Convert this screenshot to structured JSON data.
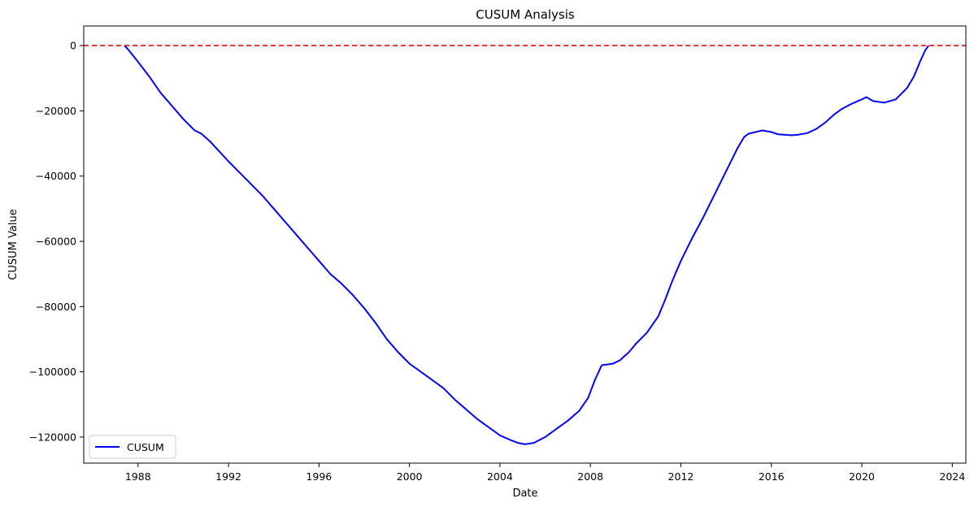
{
  "chart_data": {
    "type": "line",
    "title": "CUSUM Analysis",
    "xlabel": "Date",
    "ylabel": "CUSUM Value",
    "xlim": [
      1985.6,
      2024.6
    ],
    "ylim": [
      -128000,
      6000
    ],
    "x_ticks": [
      1988,
      1992,
      1996,
      2000,
      2004,
      2008,
      2012,
      2016,
      2020,
      2024
    ],
    "x_tick_labels": [
      "1988",
      "1992",
      "1996",
      "2000",
      "2004",
      "2008",
      "2012",
      "2016",
      "2020",
      "2024"
    ],
    "y_ticks": [
      0,
      -20000,
      -40000,
      -60000,
      -80000,
      -100000,
      -120000
    ],
    "y_tick_labels": [
      "0",
      "−20000",
      "−40000",
      "−60000",
      "−80000",
      "−100000",
      "−120000"
    ],
    "grid": false,
    "legend_position": "lower-left",
    "series": [
      {
        "name": "CUSUM",
        "color": "#0000ff",
        "x": [
          1987.4,
          1987.6,
          1988.0,
          1988.5,
          1989.0,
          1989.5,
          1990.0,
          1990.5,
          1990.8,
          1991.2,
          1991.6,
          1992.0,
          1992.5,
          1993.0,
          1993.5,
          1994.0,
          1994.5,
          1995.0,
          1995.5,
          1996.0,
          1996.5,
          1997.0,
          1997.5,
          1998.0,
          1998.5,
          1999.0,
          1999.5,
          2000.0,
          2000.5,
          2001.0,
          2001.5,
          2002.0,
          2002.5,
          2003.0,
          2003.5,
          2004.0,
          2004.5,
          2004.8,
          2005.1,
          2005.5,
          2006.0,
          2006.5,
          2007.0,
          2007.5,
          2007.9,
          2008.2,
          2008.5,
          2008.7,
          2009.0,
          2009.3,
          2009.7,
          2010.0,
          2010.5,
          2011.0,
          2011.3,
          2011.6,
          2012.0,
          2012.5,
          2013.0,
          2013.5,
          2014.0,
          2014.5,
          2014.8,
          2015.0,
          2015.3,
          2015.6,
          2016.0,
          2016.3,
          2016.9,
          2017.2,
          2017.6,
          2018.0,
          2018.4,
          2018.8,
          2019.1,
          2019.5,
          2020.0,
          2020.2,
          2020.5,
          2021.0,
          2021.5,
          2022.0,
          2022.3,
          2022.6,
          2022.8,
          2022.95
        ],
        "y": [
          0,
          -1500,
          -5000,
          -9500,
          -14500,
          -18500,
          -22500,
          -26000,
          -27000,
          -29500,
          -32500,
          -35500,
          -39000,
          -42500,
          -46000,
          -50000,
          -54000,
          -58000,
          -62000,
          -66000,
          -70000,
          -73000,
          -76500,
          -80500,
          -85000,
          -90000,
          -94000,
          -97500,
          -100000,
          -102500,
          -105000,
          -108500,
          -111500,
          -114500,
          -117000,
          -119500,
          -121000,
          -121800,
          -122200,
          -121800,
          -120000,
          -117500,
          -115000,
          -112000,
          -108000,
          -102500,
          -98000,
          -97800,
          -97500,
          -96500,
          -94000,
          -91500,
          -88000,
          -83000,
          -78000,
          -72500,
          -66000,
          -59000,
          -52500,
          -45500,
          -38500,
          -31500,
          -28000,
          -27000,
          -26500,
          -26000,
          -26500,
          -27200,
          -27500,
          -27300,
          -26800,
          -25500,
          -23500,
          -21000,
          -19500,
          -18000,
          -16500,
          -15800,
          -17000,
          -17500,
          -16500,
          -13000,
          -9500,
          -4500,
          -1500,
          0
        ]
      },
      {
        "name": "",
        "style": "dashed",
        "color": "#ff0000",
        "y_constant": 0
      }
    ]
  }
}
